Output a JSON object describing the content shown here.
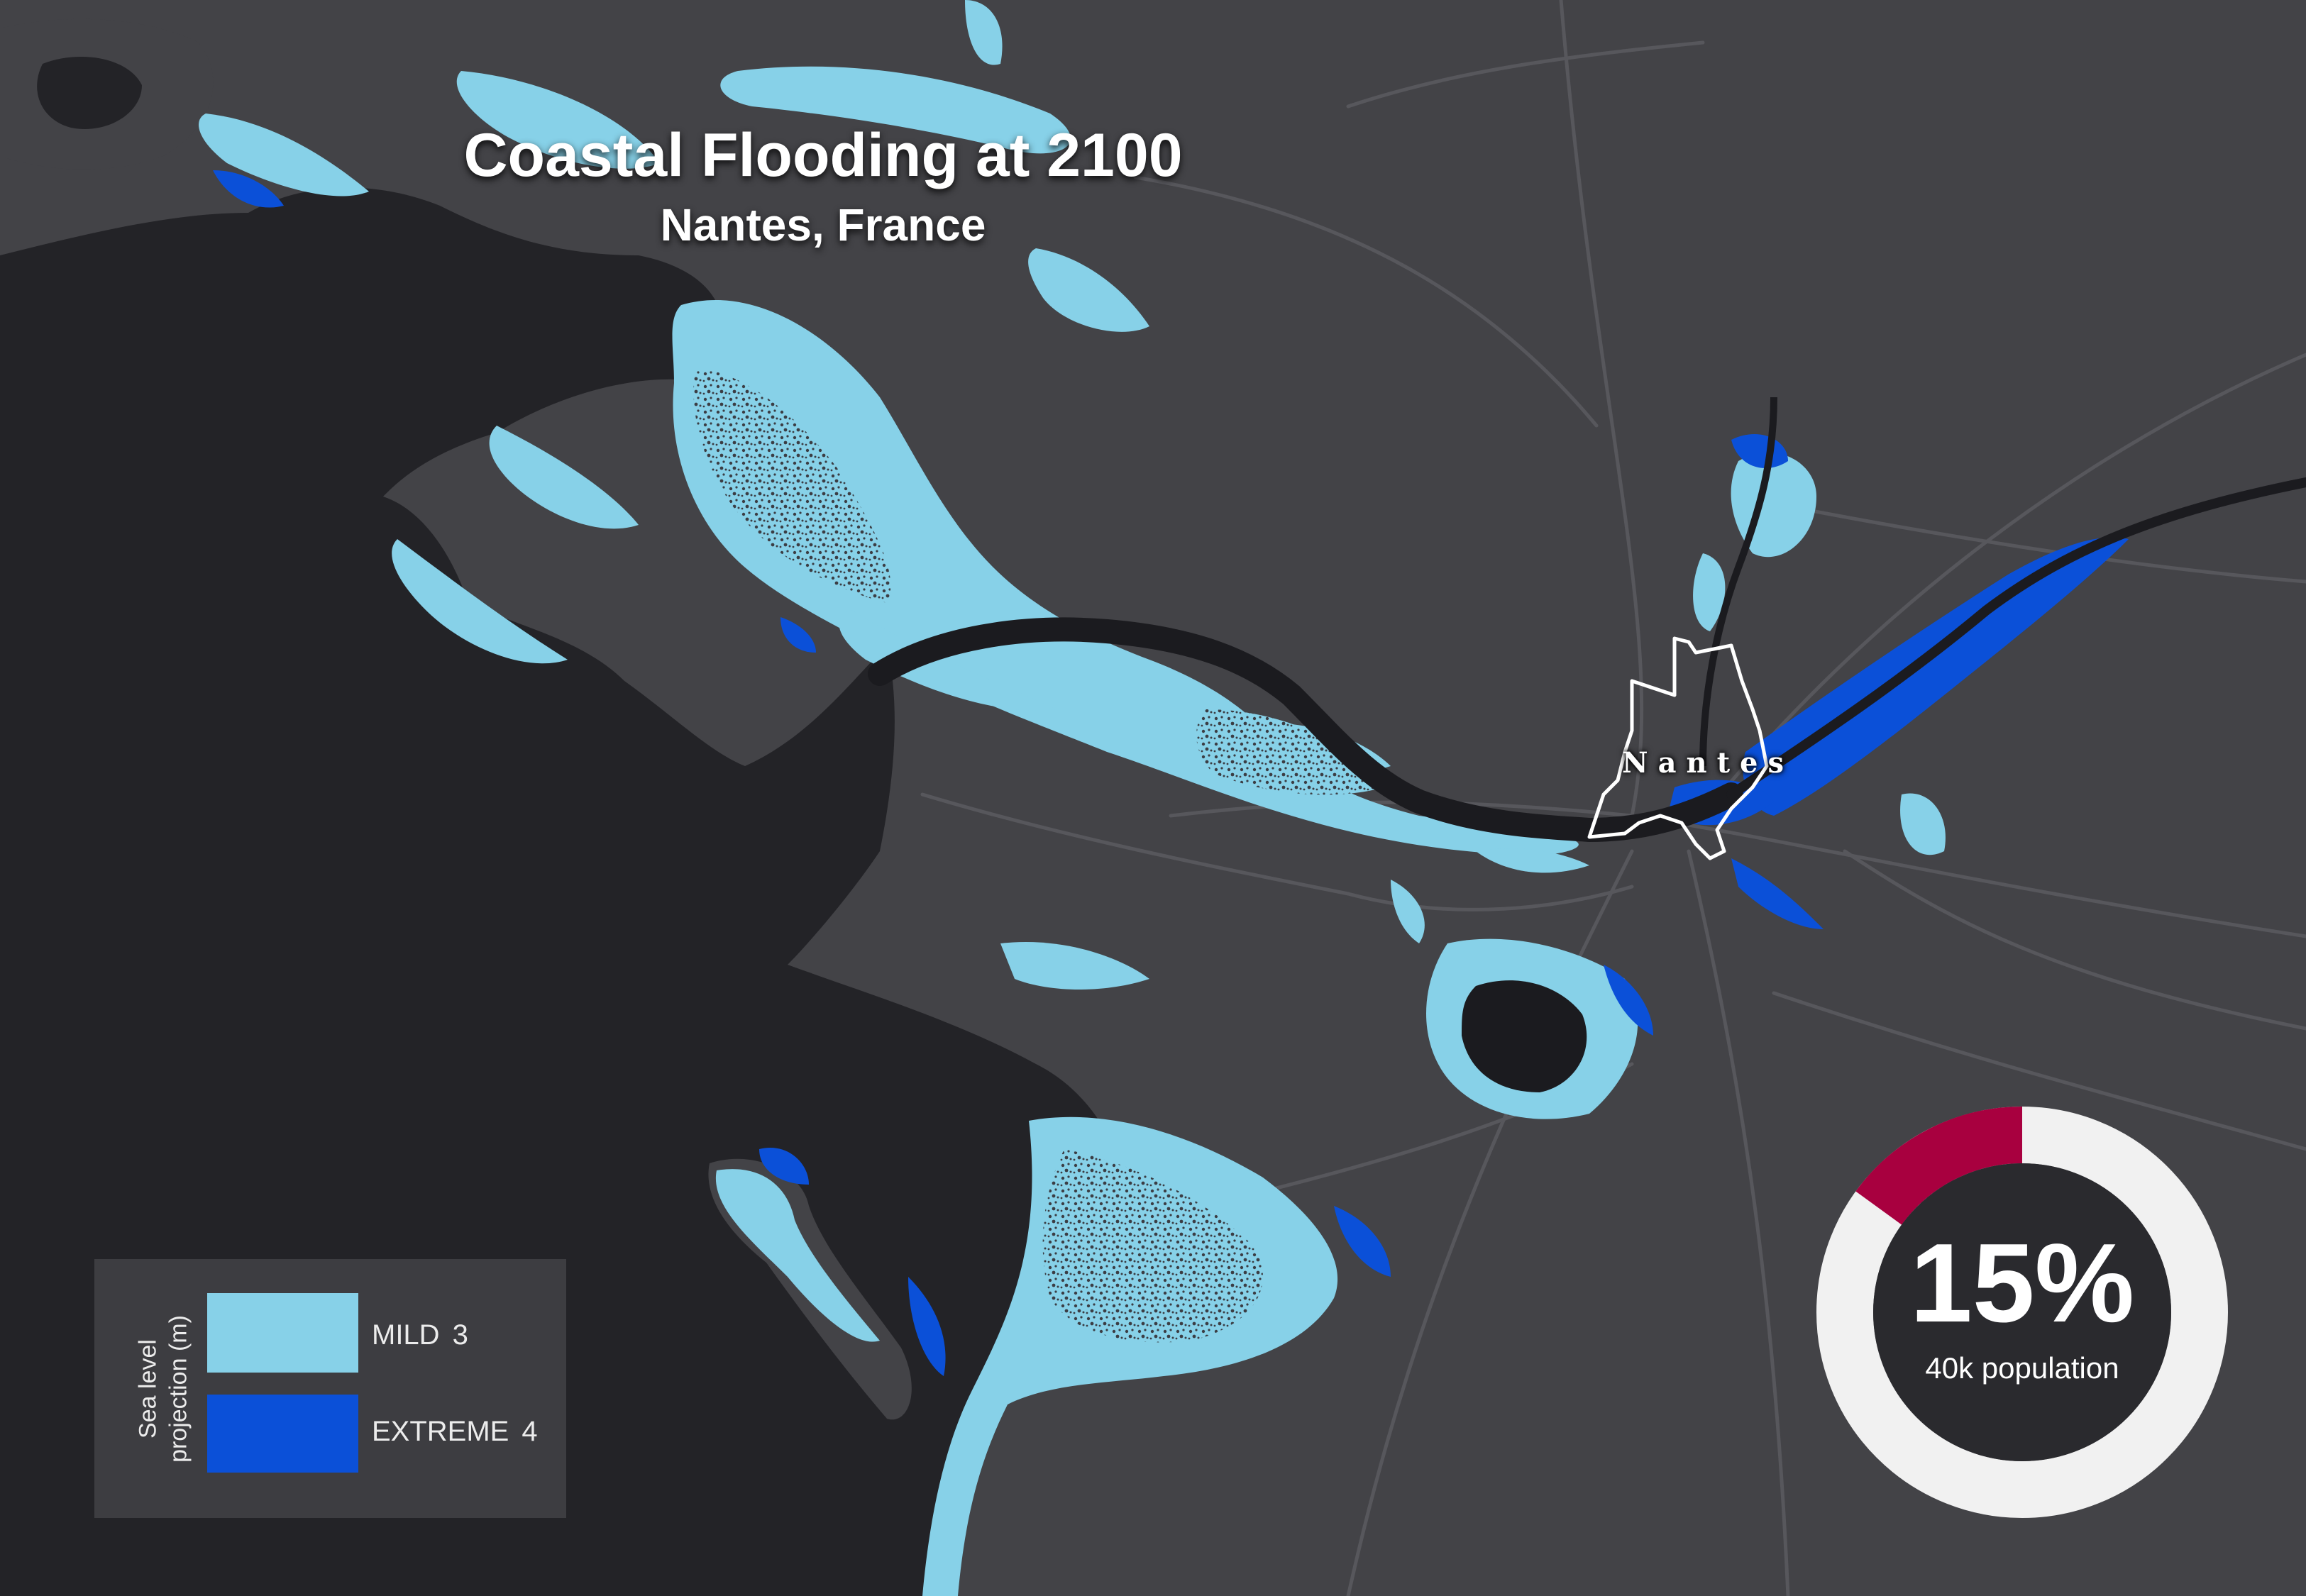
{
  "title": "Coastal Flooding at 2100",
  "subtitle": "Nantes, France",
  "city_label": "Nantes",
  "legend": {
    "axis_label_line1": "Sea level",
    "axis_label_line2": "projection (m)",
    "items": [
      {
        "label": "MILD",
        "value": "3",
        "color": "#87d1e8"
      },
      {
        "label": "EXTREME",
        "value": "4",
        "color": "#0b50d8"
      }
    ]
  },
  "stat": {
    "percent": 15,
    "percent_label": "15%",
    "population_label": "40k population",
    "fill_color": "#a8003f",
    "ring_color": "#f1f1f1",
    "center_color": "#2a2a2e"
  },
  "colors": {
    "sea": "#232327",
    "land": "#434347",
    "road": "#57575c",
    "river": "#1b1b1f"
  }
}
